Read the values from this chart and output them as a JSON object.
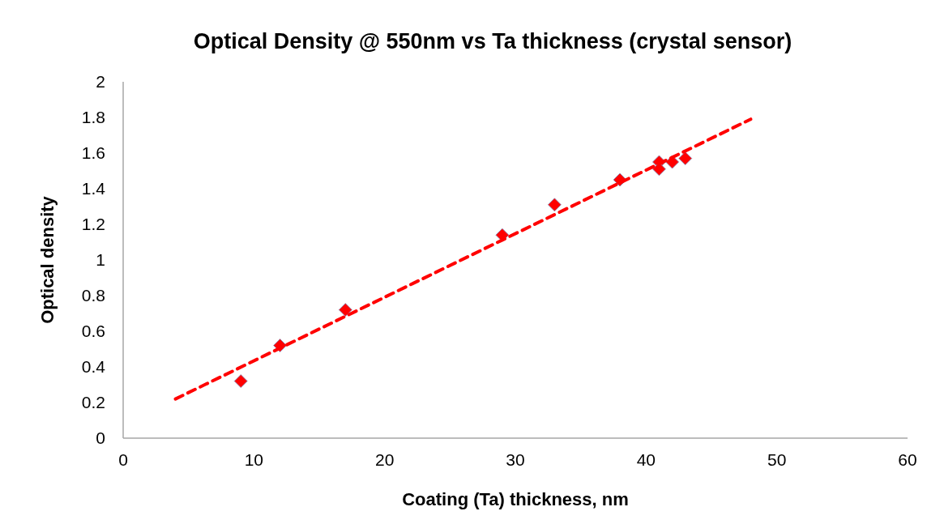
{
  "chart_data": {
    "type": "scatter",
    "title": "Optical Density @ 550nm vs Ta thickness (crystal sensor)",
    "xlabel": "Coating (Ta) thickness, nm",
    "ylabel": "Optical density",
    "xlim": [
      0,
      60
    ],
    "xticks": [
      0,
      10,
      20,
      30,
      40,
      50,
      60
    ],
    "ylim": [
      0,
      2
    ],
    "yticks": [
      0,
      0.2,
      0.4,
      0.6,
      0.8,
      1,
      1.2,
      1.4,
      1.6,
      1.8,
      2
    ],
    "grid": false,
    "series": [
      {
        "color": "#ff0000",
        "marker": "diamond",
        "x": [
          9,
          12,
          17,
          29,
          33,
          38,
          41,
          41,
          42,
          43
        ],
        "values": [
          0.32,
          0.52,
          0.72,
          1.14,
          1.31,
          1.45,
          1.55,
          1.51,
          1.55,
          1.57
        ]
      },
      {
        "type": "line",
        "color": "#ff0000",
        "line_style": "dashed",
        "marker": "none",
        "x": [
          4,
          48
        ],
        "values": [
          0.22,
          1.79
        ]
      }
    ]
  }
}
